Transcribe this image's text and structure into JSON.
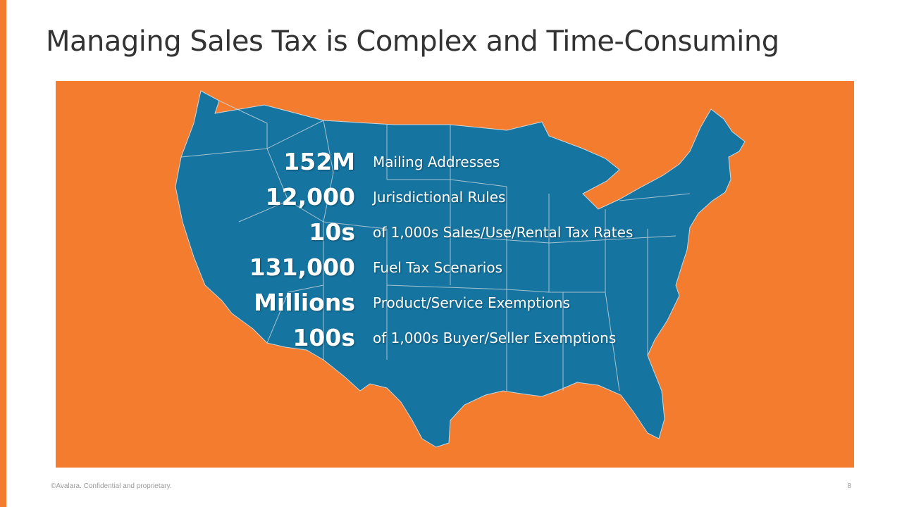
{
  "slide": {
    "title": "Managing Sales Tax is Complex and Time-Consuming",
    "accent_color": "#f47c2f",
    "map_color": "#1574a0",
    "stats": [
      {
        "value": "152M",
        "label": "Mailing Addresses"
      },
      {
        "value": "12,000",
        "label": "Jurisdictional Rules"
      },
      {
        "value": "10s",
        "label": "of 1,000s Sales/Use/Rental Tax Rates"
      },
      {
        "value": "131,000",
        "label": "Fuel Tax Scenarios"
      },
      {
        "value": "Millions",
        "label": "Product/Service Exemptions"
      },
      {
        "value": "100s",
        "label": "of 1,000s Buyer/Seller Exemptions"
      }
    ],
    "footer": {
      "copyright": "©Avalara. Confidential and proprietary.",
      "page_number": "8"
    }
  }
}
